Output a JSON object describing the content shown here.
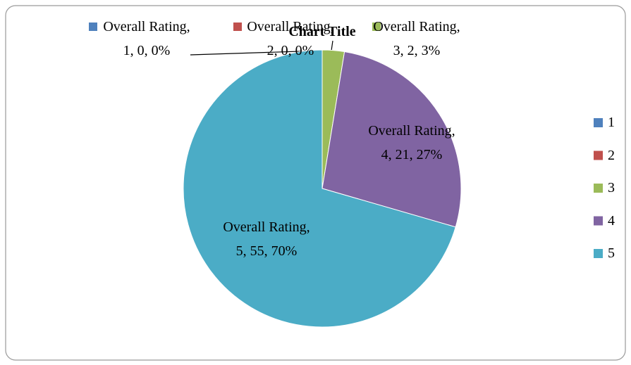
{
  "chart_data": {
    "type": "pie",
    "title": "Chart Title",
    "categories": [
      "1",
      "2",
      "3",
      "4",
      "5"
    ],
    "values": [
      0,
      0,
      2,
      21,
      55
    ],
    "value_labels": [
      "Overall Rating, 1, 0, 0%",
      "Overall Rating, 2, 0, 0%",
      "Overall Rating, 3, 2, 3%",
      "Overall Rating, 4, 21, 27%",
      "Overall Rating, 5, 55, 70%"
    ],
    "colors": [
      "#4f81bd",
      "#c0504d",
      "#9bbb59",
      "#8064a2",
      "#4bacc6"
    ],
    "legend": "right"
  }
}
